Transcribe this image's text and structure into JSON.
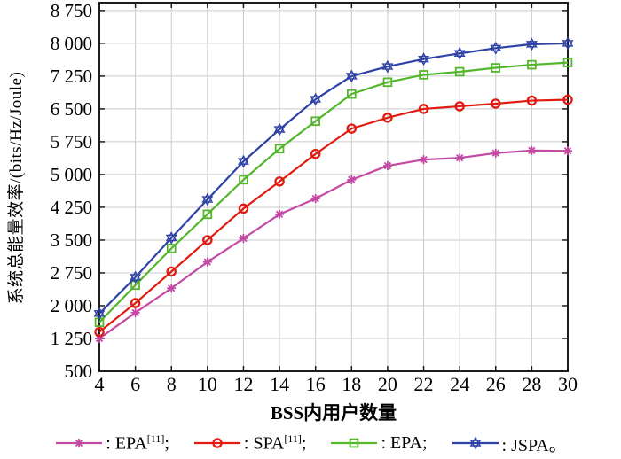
{
  "figure": {
    "background": "#ffffff",
    "frame_color": "#1c1c1c",
    "grid_color": "#cbcbcb"
  },
  "chart_data": {
    "type": "line",
    "title": "",
    "xlabel": "BSS内用户数量",
    "ylabel": "系统总能量效率/(bits/Hz/Joule)",
    "grid": true,
    "legend_position": "bottom",
    "xlim": [
      4,
      30
    ],
    "ylim": [
      500,
      8930
    ],
    "xticks": [
      4,
      6,
      8,
      10,
      12,
      14,
      16,
      18,
      20,
      22,
      24,
      26,
      28,
      30
    ],
    "yticks": [
      500,
      1250,
      2000,
      2750,
      3500,
      4250,
      5000,
      5750,
      6500,
      7250,
      8000,
      8750
    ],
    "ytick_labels": [
      "500",
      "1 250",
      "2 000",
      "2 750",
      "3 500",
      "4 250",
      "5 000",
      "5 750",
      "6 500",
      "7 250",
      "8 000",
      "8 750"
    ],
    "x": [
      4,
      6,
      8,
      10,
      12,
      14,
      16,
      18,
      20,
      22,
      24,
      26,
      28,
      30
    ],
    "series": [
      {
        "name": "EPA[11]",
        "marker": "asterisk",
        "color": "#c349a3",
        "values": [
          1250,
          1840,
          2400,
          3000,
          3540,
          4090,
          4450,
          4880,
          5200,
          5340,
          5380,
          5490,
          5550,
          5540
        ]
      },
      {
        "name": "SPA[11]",
        "marker": "circle",
        "color": "#e11b11",
        "values": [
          1400,
          2060,
          2780,
          3500,
          4220,
          4840,
          5470,
          6050,
          6300,
          6500,
          6560,
          6620,
          6690,
          6710
        ]
      },
      {
        "name": "EPA",
        "marker": "square",
        "color": "#53b62b",
        "values": [
          1620,
          2470,
          3310,
          4090,
          4880,
          5590,
          6220,
          6840,
          7110,
          7280,
          7350,
          7440,
          7510,
          7560
        ]
      },
      {
        "name": "JSPA",
        "marker": "hexagram",
        "color": "#2e41a5",
        "values": [
          1820,
          2650,
          3550,
          4430,
          5300,
          6030,
          6720,
          7250,
          7470,
          7640,
          7770,
          7890,
          7980,
          8000
        ]
      }
    ]
  },
  "legend": {
    "items": [
      {
        "prefix": ": ",
        "label": "EPA",
        "sup": "[11]",
        "suffix": ";",
        "marker": "asterisk",
        "color": "#c349a3"
      },
      {
        "prefix": ": ",
        "label": "SPA",
        "sup": "[11]",
        "suffix": ";",
        "marker": "circle",
        "color": "#e11b11"
      },
      {
        "prefix": ": ",
        "label": "EPA",
        "sup": "",
        "suffix": ";",
        "marker": "square",
        "color": "#53b62b"
      },
      {
        "prefix": ": ",
        "label": "JSPA",
        "sup": "",
        "suffix": "。",
        "marker": "hexagram",
        "color": "#2e41a5"
      }
    ]
  }
}
